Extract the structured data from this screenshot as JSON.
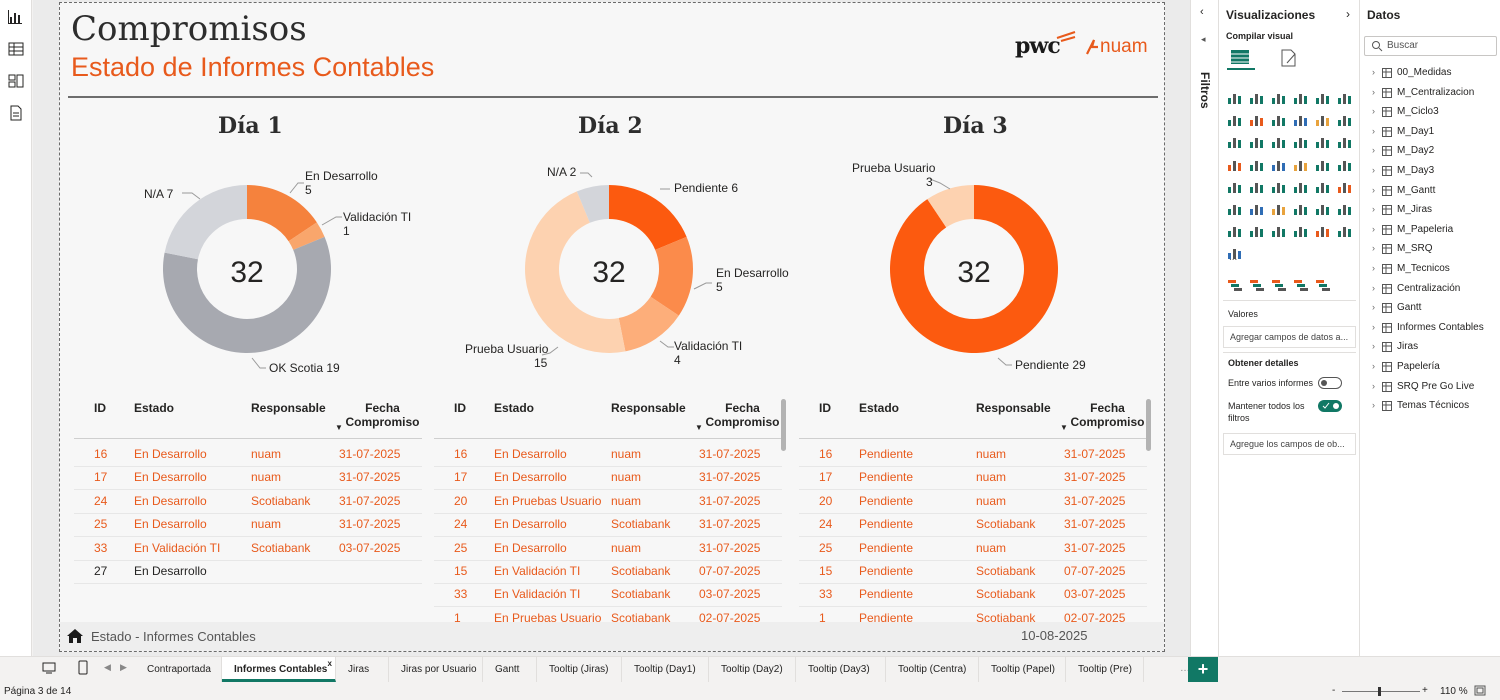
{
  "report": {
    "title": "Compromisos",
    "subtitle": "Estado de Informes Contables",
    "footer_label": "Estado - Informes Contables",
    "footer_date": "10-08-2025"
  },
  "days": [
    {
      "title": "Día 1",
      "center": "32"
    },
    {
      "title": "Día 2",
      "center": "32"
    },
    {
      "title": "Día 3",
      "center": "32"
    }
  ],
  "chart_data": [
    {
      "type": "pie",
      "title": "Día 1",
      "slices": [
        {
          "label": "En Desarrollo",
          "value": 5,
          "color": "#f5823d"
        },
        {
          "label": "Validación TI",
          "value": 1,
          "color": "#f9a66c"
        },
        {
          "label": "OK Scotia",
          "value": 19,
          "color": "#a7a9b0"
        },
        {
          "label": "N/A",
          "value": 7,
          "color": "#d3d5da"
        }
      ]
    },
    {
      "type": "pie",
      "title": "Día 2",
      "slices": [
        {
          "label": "Pendiente",
          "value": 6,
          "color": "#fc5a0f"
        },
        {
          "label": "En Desarrollo",
          "value": 5,
          "color": "#fb8b4b"
        },
        {
          "label": "Validación TI",
          "value": 4,
          "color": "#fdae7a"
        },
        {
          "label": "Prueba Usuario",
          "value": 15,
          "color": "#fdd2b0"
        },
        {
          "label": "N/A",
          "value": 2,
          "color": "#d3d5da"
        }
      ]
    },
    {
      "type": "pie",
      "title": "Día 3",
      "slices": [
        {
          "label": "Pendiente",
          "value": 29,
          "color": "#fc5a0f"
        },
        {
          "label": "Prueba Usuario",
          "value": 3,
          "color": "#fdd2b0"
        }
      ]
    }
  ],
  "donut_labels": {
    "d1": {
      "a1": "En Desarrollo",
      "a2": "5",
      "b1": "Validación TI",
      "b2": "1",
      "c": "N/A 7",
      "d": "OK Scotia 19"
    },
    "d2": {
      "a": "N/A 2",
      "b": "Pendiente 6",
      "c1": "En Desarrollo",
      "c2": "5",
      "d1": "Validación TI",
      "d2": "4",
      "e1": "Prueba Usuario",
      "e2": "15"
    },
    "d3": {
      "a1": "Prueba Usuario",
      "a2": "3",
      "b": "Pendiente 29"
    }
  },
  "table_headers": {
    "id": "ID",
    "estado": "Estado",
    "responsable": "Responsable",
    "fecha1": "Fecha",
    "fecha2": "Compromiso"
  },
  "tables": [
    [
      [
        "16",
        "En Desarrollo",
        "nuam",
        "31-07-2025",
        "o"
      ],
      [
        "17",
        "En Desarrollo",
        "nuam",
        "31-07-2025",
        "o"
      ],
      [
        "24",
        "En Desarrollo",
        "Scotiabank",
        "31-07-2025",
        "o"
      ],
      [
        "25",
        "En Desarrollo",
        "nuam",
        "31-07-2025",
        "o"
      ],
      [
        "33",
        "En Validación TI",
        "Scotiabank",
        "03-07-2025",
        "o"
      ],
      [
        "27",
        "En Desarrollo",
        "",
        "",
        "k"
      ]
    ],
    [
      [
        "16",
        "En Desarrollo",
        "nuam",
        "31-07-2025",
        "o"
      ],
      [
        "17",
        "En Desarrollo",
        "nuam",
        "31-07-2025",
        "o"
      ],
      [
        "20",
        "En Pruebas Usuario",
        "nuam",
        "31-07-2025",
        "o"
      ],
      [
        "24",
        "En Desarrollo",
        "Scotiabank",
        "31-07-2025",
        "o"
      ],
      [
        "25",
        "En Desarrollo",
        "nuam",
        "31-07-2025",
        "o"
      ],
      [
        "15",
        "En Validación TI",
        "Scotiabank",
        "07-07-2025",
        "o"
      ],
      [
        "33",
        "En Validación TI",
        "Scotiabank",
        "03-07-2025",
        "o"
      ],
      [
        "1",
        "En Pruebas Usuario",
        "Scotiabank",
        "02-07-2025",
        "o"
      ]
    ],
    [
      [
        "16",
        "Pendiente",
        "nuam",
        "31-07-2025",
        "o"
      ],
      [
        "17",
        "Pendiente",
        "nuam",
        "31-07-2025",
        "o"
      ],
      [
        "20",
        "Pendiente",
        "nuam",
        "31-07-2025",
        "o"
      ],
      [
        "24",
        "Pendiente",
        "Scotiabank",
        "31-07-2025",
        "o"
      ],
      [
        "25",
        "Pendiente",
        "nuam",
        "31-07-2025",
        "o"
      ],
      [
        "15",
        "Pendiente",
        "Scotiabank",
        "07-07-2025",
        "o"
      ],
      [
        "33",
        "Pendiente",
        "Scotiabank",
        "03-07-2025",
        "o"
      ],
      [
        "1",
        "Pendiente",
        "Scotiabank",
        "02-07-2025",
        "o"
      ]
    ]
  ],
  "logos": {
    "pwc": "pwc",
    "nuam": "nuam"
  },
  "filters_label": "Filtros",
  "viz_panel": {
    "title": "Visualizaciones",
    "build": "Compilar visual",
    "values": "Valores",
    "values_placeholder": "Agregar campos de datos a...",
    "drill": "Obtener detalles",
    "cross_report": "Entre varios informes",
    "keep_filters": "Mantener todos los filtros",
    "drill_placeholder": "Agregue los campos de ob...",
    "more": "...",
    "cross_report_state": "off",
    "keep_filters_state": "on"
  },
  "data_panel": {
    "title": "Datos",
    "search_placeholder": "Buscar",
    "items": [
      "00_Medidas",
      "M_Centralizacion",
      "M_Ciclo3",
      "M_Day1",
      "M_Day2",
      "M_Day3",
      "M_Gantt",
      "M_Jiras",
      "M_Papeleria",
      "M_SRQ",
      "M_Tecnicos",
      "Centralización",
      "Gantt",
      "Informes Contables",
      "Jiras",
      "Papelería",
      "SRQ Pre Go Live",
      "Temas Técnicos"
    ]
  },
  "tabs": [
    "Contraportada",
    "Informes Contables",
    "Jiras",
    "Jiras por Usuario",
    "Gantt",
    "Tooltip (Jiras)",
    "Tooltip (Day1)",
    "Tooltip (Day2)",
    "Tooltip (Day3)",
    "Tooltip (Centra)",
    "Tooltip (Papel)",
    "Tooltip (Pre)"
  ],
  "status": {
    "page": "Página 3 de 14",
    "zoom": "110 %",
    "zoom_minus": "-",
    "zoom_plus": "+"
  }
}
